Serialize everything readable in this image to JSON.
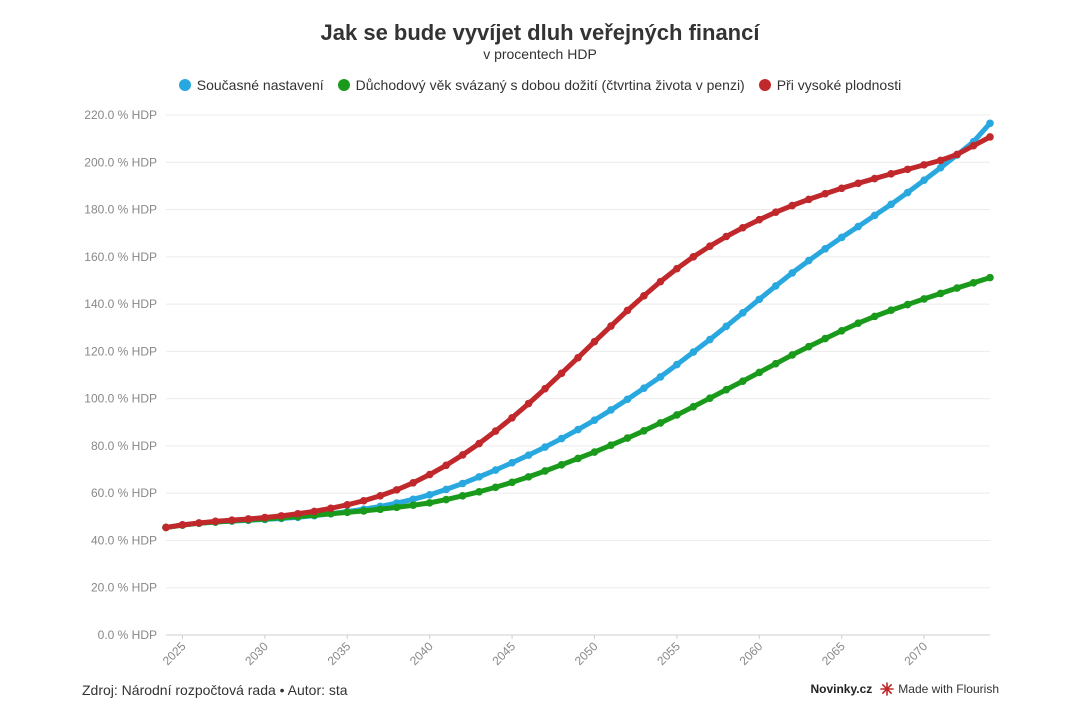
{
  "header": {
    "title": "Jak se bude vyvíjet dluh veřejných financí",
    "subtitle": "v procentech HDP"
  },
  "legend": [
    {
      "label": "Současné nastavení",
      "color": "#29a8e0"
    },
    {
      "label": "Důchodový věk svázaný s dobou dožití (čtvrtina života v penzi)",
      "color": "#1a9a1a"
    },
    {
      "label": "Při vysoké plodnosti",
      "color": "#c0282b"
    }
  ],
  "footer": {
    "source": "Zdroj: Národní rozpočtová rada • Autor: sta",
    "brand": "Novinky.cz",
    "flourish": "Made with Flourish",
    "flourish_icon": "flourish-logo-icon"
  },
  "chart_data": {
    "type": "line",
    "title": "Jak se bude vyvíjet dluh veřejných financí",
    "subtitle": "v procentech HDP",
    "xlabel": "",
    "ylabel": "",
    "xlim": [
      2024,
      2074
    ],
    "ylim": [
      0,
      220
    ],
    "x_ticks": [
      2025,
      2030,
      2035,
      2040,
      2045,
      2050,
      2055,
      2060,
      2065,
      2070
    ],
    "y_ticks": [
      0,
      20,
      40,
      60,
      80,
      100,
      120,
      140,
      160,
      180,
      200,
      220
    ],
    "y_tick_suffix": " % HDP",
    "grid": true,
    "legend_position": "top",
    "x": [
      2024,
      2025,
      2026,
      2027,
      2028,
      2029,
      2030,
      2031,
      2032,
      2033,
      2034,
      2035,
      2036,
      2037,
      2038,
      2039,
      2040,
      2041,
      2042,
      2043,
      2044,
      2045,
      2046,
      2047,
      2048,
      2049,
      2050,
      2051,
      2052,
      2053,
      2054,
      2055,
      2056,
      2057,
      2058,
      2059,
      2060,
      2061,
      2062,
      2063,
      2064,
      2065,
      2066,
      2067,
      2068,
      2069,
      2070,
      2071,
      2072,
      2073,
      2074
    ],
    "series": [
      {
        "name": "Současné nastavení",
        "color": "#29a8e0",
        "values": [
          45.5,
          46.5,
          47.3,
          47.8,
          48.2,
          48.5,
          48.9,
          49.3,
          49.8,
          50.5,
          51.3,
          52.2,
          53.2,
          54.4,
          55.8,
          57.4,
          59.3,
          61.6,
          64.1,
          66.9,
          69.8,
          72.9,
          76.1,
          79.5,
          83.1,
          86.9,
          90.9,
          95.2,
          99.7,
          104.4,
          109.2,
          114.4,
          119.7,
          125.0,
          130.6,
          136.3,
          142.0,
          147.7,
          153.2,
          158.4,
          163.4,
          168.2,
          172.8,
          177.5,
          182.2,
          187.2,
          192.4,
          197.7,
          203.1,
          208.7,
          216.5
        ]
      },
      {
        "name": "Důchodový věk svázaný s dobou dožití (čtvrtina života v penzi)",
        "color": "#1a9a1a",
        "values": [
          45.5,
          46.5,
          47.3,
          47.8,
          48.3,
          48.7,
          49.1,
          49.6,
          50.1,
          50.7,
          51.3,
          51.9,
          52.5,
          53.2,
          54.0,
          54.9,
          55.9,
          57.3,
          58.9,
          60.6,
          62.5,
          64.6,
          66.9,
          69.4,
          72.0,
          74.7,
          77.4,
          80.3,
          83.3,
          86.4,
          89.7,
          93.1,
          96.6,
          100.2,
          103.8,
          107.4,
          111.1,
          114.8,
          118.5,
          122.0,
          125.4,
          128.7,
          131.9,
          134.8,
          137.4,
          139.8,
          142.2,
          144.5,
          146.8,
          149.0,
          151.2
        ]
      },
      {
        "name": "Při vysoké plodnosti",
        "color": "#c0282b",
        "values": [
          45.5,
          46.6,
          47.4,
          48.1,
          48.6,
          49.1,
          49.7,
          50.4,
          51.3,
          52.3,
          53.6,
          55.1,
          56.8,
          58.9,
          61.4,
          64.4,
          67.9,
          71.8,
          76.2,
          81.0,
          86.3,
          91.9,
          97.9,
          104.2,
          110.7,
          117.3,
          124.1,
          130.7,
          137.3,
          143.5,
          149.5,
          155.0,
          160.0,
          164.5,
          168.6,
          172.3,
          175.7,
          178.9,
          181.7,
          184.3,
          186.7,
          189.0,
          191.1,
          193.1,
          195.1,
          197.0,
          198.9,
          200.8,
          203.3,
          207.0,
          210.7
        ]
      }
    ]
  }
}
